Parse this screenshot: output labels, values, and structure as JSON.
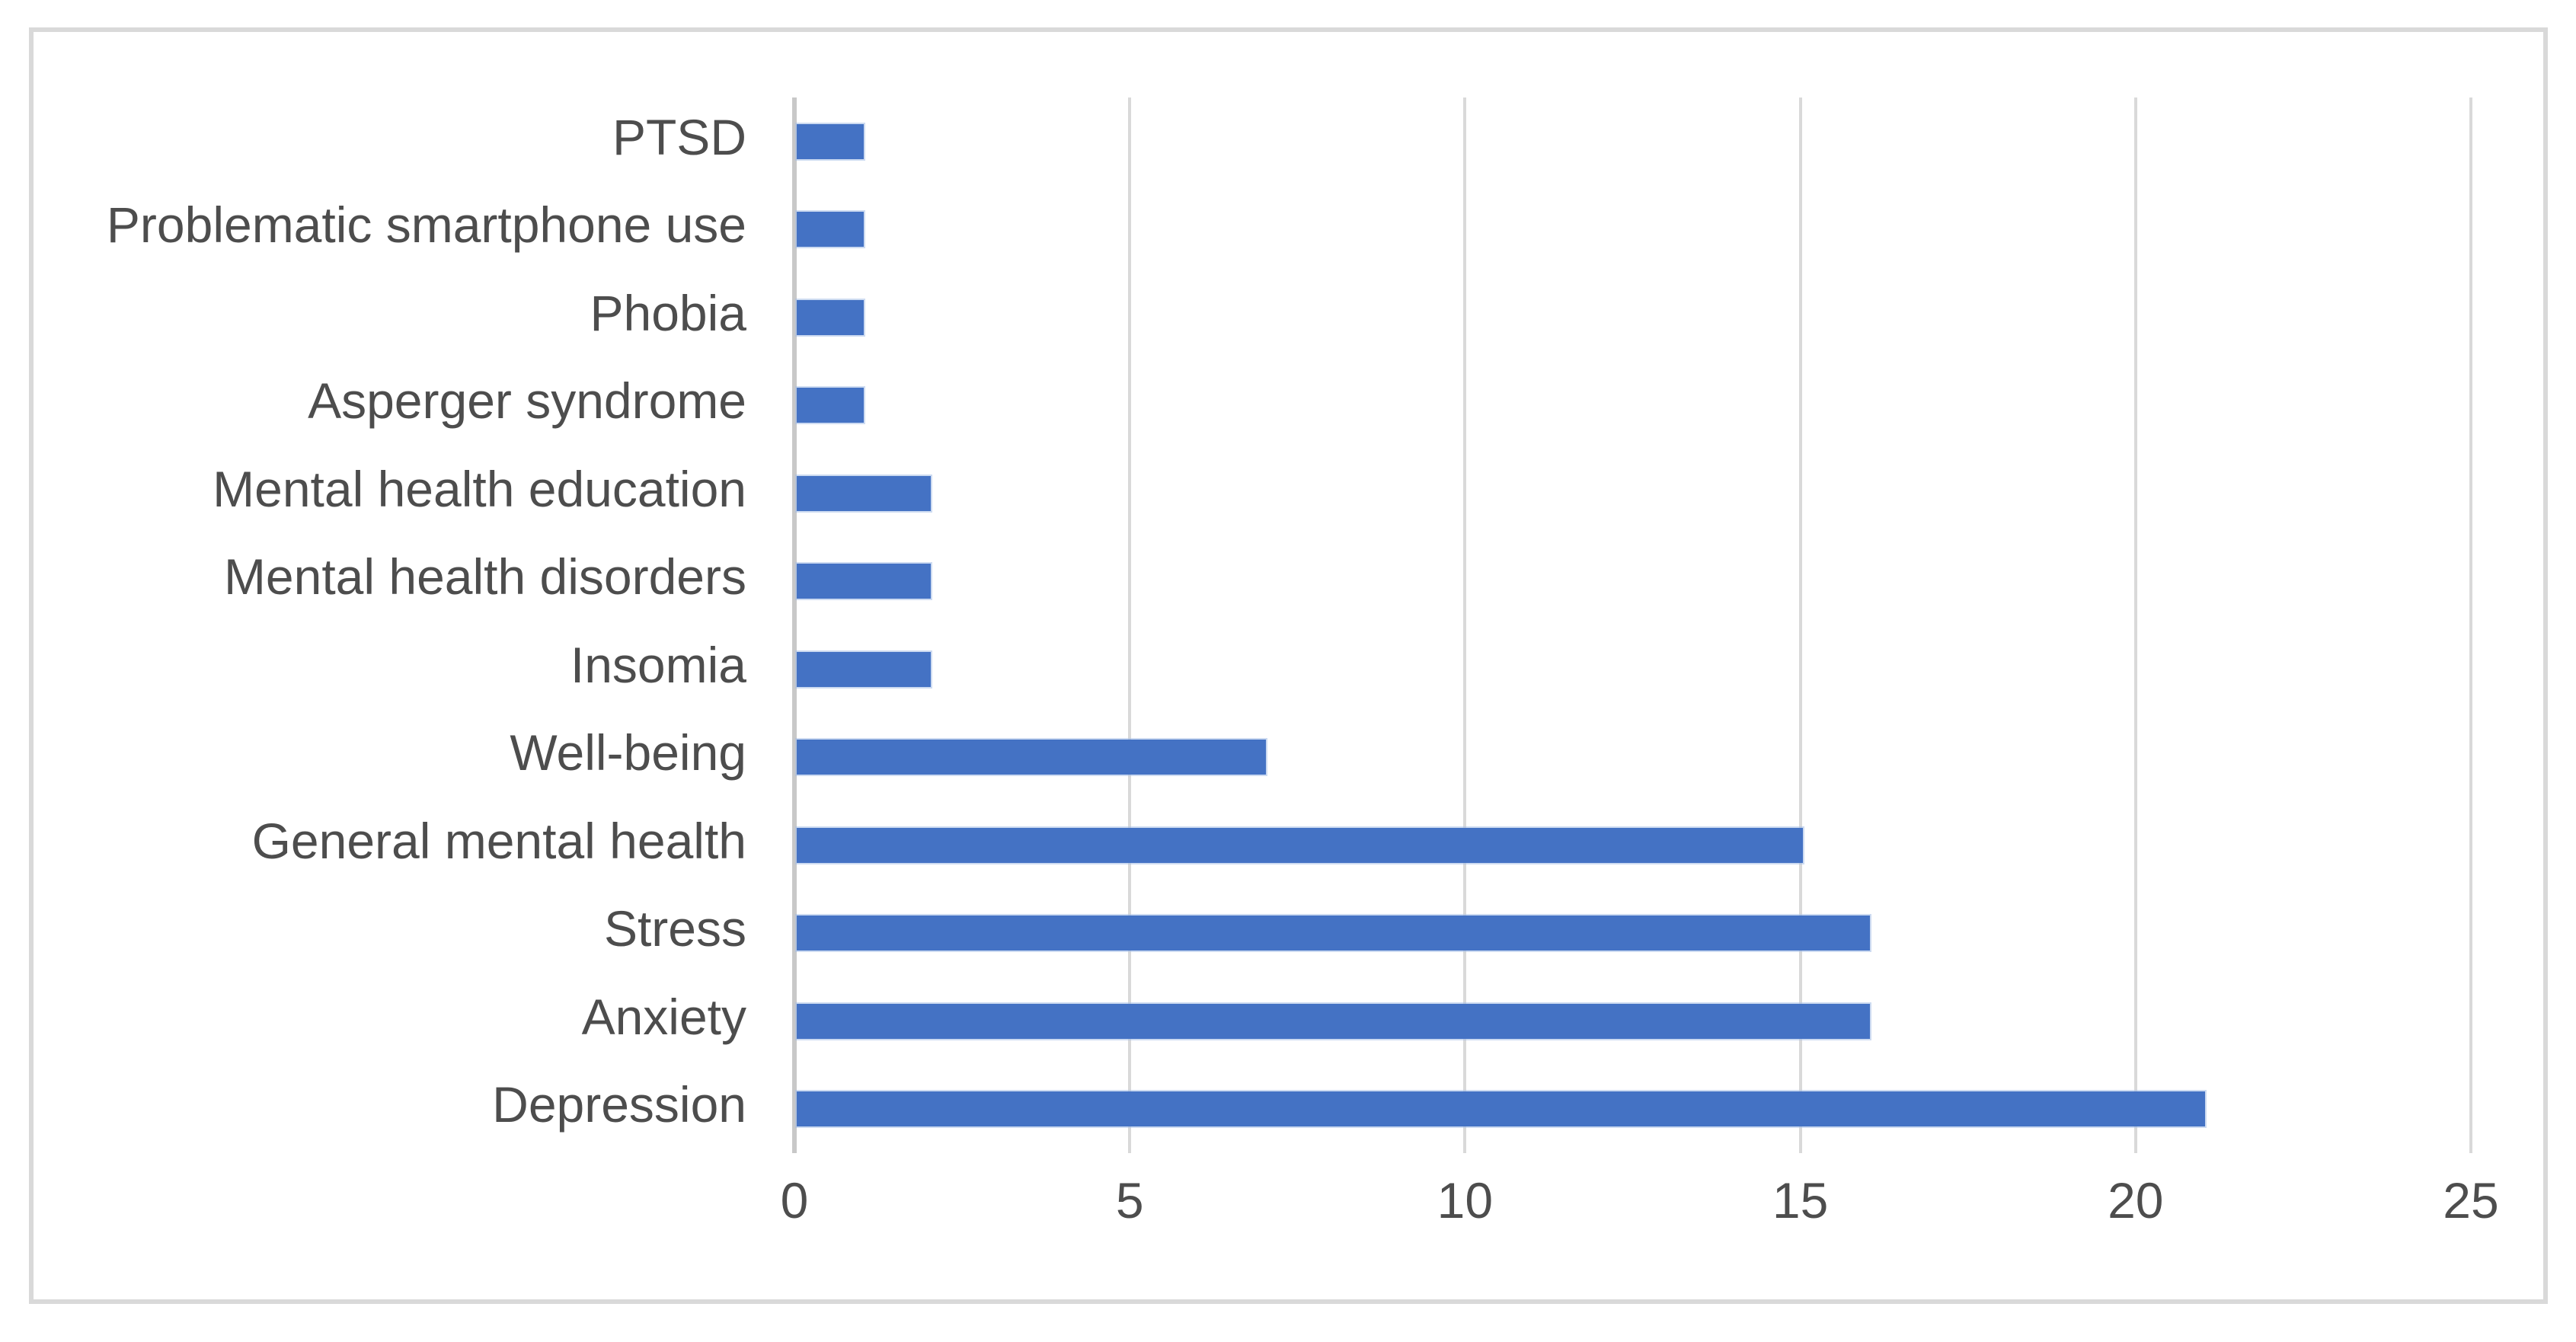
{
  "page": {
    "background_color": "#FFFFFF"
  },
  "chart_data": {
    "type": "bar",
    "orientation": "horizontal",
    "title": "",
    "xlabel": "",
    "ylabel": "",
    "categories": [
      "PTSD",
      "Problematic smartphone use",
      "Phobia",
      "Asperger syndrome",
      "Mental health education",
      "Mental health disorders",
      "Insomia",
      "Well-being",
      "General mental health",
      "Stress",
      "Anxiety",
      "Depression"
    ],
    "values": [
      1,
      1,
      1,
      1,
      2,
      2,
      2,
      7,
      15,
      16,
      16,
      21
    ],
    "xlim": [
      0,
      25
    ],
    "xticks": [
      0,
      5,
      10,
      15,
      20,
      25
    ],
    "grid": true,
    "legend": false,
    "layout_hints": {
      "gridlines": "vertical, light gray, at every 5 units",
      "category_order": "top to bottom as listed",
      "frame": "light gray rectangular border around whole chart"
    },
    "colors": {
      "bar": "#4472C4",
      "gridline": "#D9D9D9",
      "axis": "#C8C8C8",
      "text": "#4D4D4D",
      "frame_border": "#D9D9D9",
      "background": "#FFFFFF"
    }
  }
}
